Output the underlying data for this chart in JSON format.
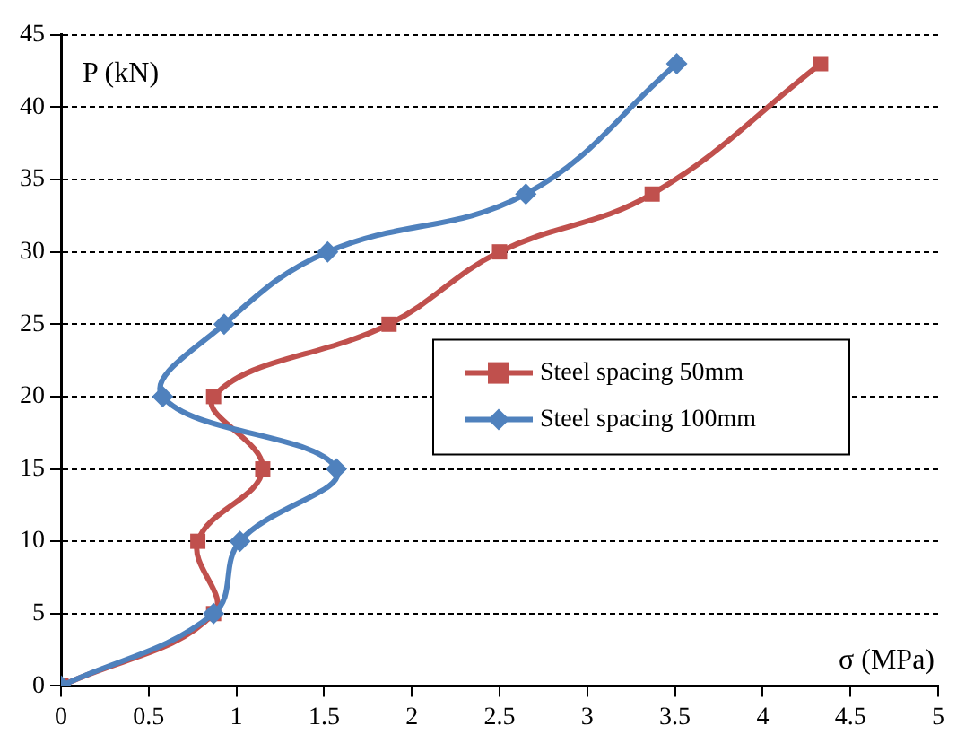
{
  "chart_data": {
    "type": "line",
    "xlabel": "σ (MPa)",
    "ylabel": "P (kN)",
    "series": [
      {
        "name": "Steel spacing 50mm",
        "color": "#c0504d",
        "marker": "square",
        "x": [
          0,
          0.87,
          0.78,
          1.15,
          0.87,
          1.87,
          2.5,
          3.37,
          4.33
        ],
        "values": [
          0,
          5,
          10,
          15,
          20,
          25,
          30,
          34,
          43
        ]
      },
      {
        "name": "Steel spacing 100mm",
        "color": "#4f81bd",
        "marker": "diamond",
        "x": [
          0,
          0.87,
          1.02,
          1.57,
          0.58,
          0.93,
          1.52,
          2.65,
          3.51
        ],
        "values": [
          0,
          5,
          10,
          15,
          20,
          25,
          30,
          34,
          43
        ]
      }
    ],
    "xlim": [
      0,
      5
    ],
    "xticks": [
      0,
      0.5,
      1,
      1.5,
      2,
      2.5,
      3,
      3.5,
      4,
      4.5,
      5
    ],
    "ylim": [
      0,
      45
    ],
    "yticks": [
      0,
      5,
      10,
      15,
      20,
      25,
      30,
      35,
      40,
      45
    ],
    "grid": "y",
    "legend": "right",
    "line_style": "solid"
  }
}
